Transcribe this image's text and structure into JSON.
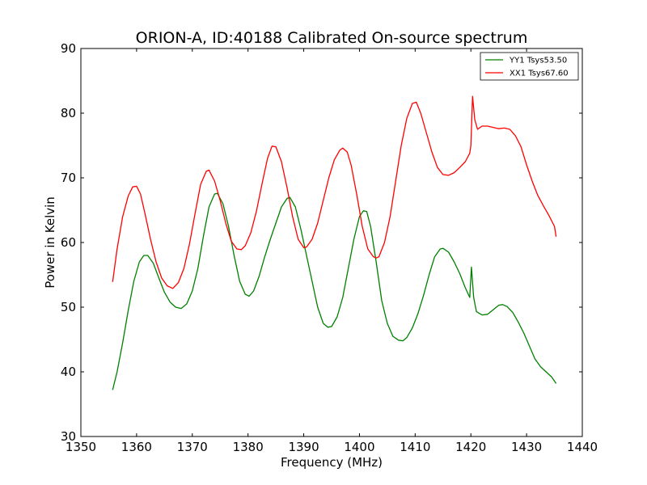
{
  "chart_data": {
    "type": "line",
    "title": "ORION-A, ID:40188 Calibrated On-source spectrum",
    "xlabel": "Frequency (MHz)",
    "ylabel": "Power in Kelvin",
    "xlim": [
      1350,
      1440
    ],
    "ylim": [
      30,
      90
    ],
    "xticks": [
      1350,
      1360,
      1370,
      1380,
      1390,
      1400,
      1410,
      1420,
      1430,
      1440
    ],
    "yticks": [
      30,
      40,
      50,
      60,
      70,
      80,
      90
    ],
    "grid": false,
    "legend_position": "top-right",
    "series": [
      {
        "name": "YY1 Tsys53.50",
        "color": "#008000",
        "points": [
          [
            1355.7,
            37.2
          ],
          [
            1356.5,
            40.0
          ],
          [
            1357.5,
            44.5
          ],
          [
            1358.5,
            49.5
          ],
          [
            1359.5,
            54.0
          ],
          [
            1360.5,
            57.0
          ],
          [
            1361.3,
            58.0
          ],
          [
            1362.0,
            58.0
          ],
          [
            1363.0,
            56.8
          ],
          [
            1364.0,
            54.5
          ],
          [
            1365.0,
            52.3
          ],
          [
            1366.0,
            50.8
          ],
          [
            1367.0,
            50.0
          ],
          [
            1368.0,
            49.8
          ],
          [
            1369.0,
            50.5
          ],
          [
            1370.0,
            52.5
          ],
          [
            1371.0,
            56.0
          ],
          [
            1372.0,
            61.0
          ],
          [
            1373.0,
            65.5
          ],
          [
            1374.0,
            67.5
          ],
          [
            1374.5,
            67.6
          ],
          [
            1375.5,
            66.0
          ],
          [
            1376.5,
            62.5
          ],
          [
            1377.5,
            58.0
          ],
          [
            1378.5,
            54.0
          ],
          [
            1379.5,
            52.0
          ],
          [
            1380.2,
            51.7
          ],
          [
            1381.0,
            52.5
          ],
          [
            1382.0,
            54.8
          ],
          [
            1383.0,
            57.8
          ],
          [
            1384.0,
            60.5
          ],
          [
            1385.0,
            63.0
          ],
          [
            1386.0,
            65.5
          ],
          [
            1387.0,
            66.8
          ],
          [
            1387.5,
            67.0
          ],
          [
            1388.5,
            65.5
          ],
          [
            1389.5,
            62.0
          ],
          [
            1390.5,
            58.0
          ],
          [
            1391.5,
            54.0
          ],
          [
            1392.5,
            50.0
          ],
          [
            1393.5,
            47.5
          ],
          [
            1394.3,
            46.9
          ],
          [
            1395.0,
            47.0
          ],
          [
            1396.0,
            48.5
          ],
          [
            1397.0,
            51.5
          ],
          [
            1398.0,
            56.0
          ],
          [
            1399.0,
            60.5
          ],
          [
            1400.0,
            64.0
          ],
          [
            1400.7,
            64.9
          ],
          [
            1401.3,
            64.8
          ],
          [
            1402.0,
            62.5
          ],
          [
            1403.0,
            57.0
          ],
          [
            1404.0,
            51.0
          ],
          [
            1405.0,
            47.5
          ],
          [
            1406.0,
            45.5
          ],
          [
            1407.0,
            44.9
          ],
          [
            1407.8,
            44.8
          ],
          [
            1408.5,
            45.3
          ],
          [
            1409.5,
            46.8
          ],
          [
            1410.5,
            49.0
          ],
          [
            1411.5,
            51.8
          ],
          [
            1412.5,
            55.0
          ],
          [
            1413.5,
            57.8
          ],
          [
            1414.5,
            59.0
          ],
          [
            1415.0,
            59.1
          ],
          [
            1416.0,
            58.5
          ],
          [
            1417.0,
            57.0
          ],
          [
            1418.0,
            55.2
          ],
          [
            1419.0,
            53.0
          ],
          [
            1419.8,
            51.5
          ],
          [
            1420.1,
            56.2
          ],
          [
            1420.5,
            51.5
          ],
          [
            1421.0,
            49.3
          ],
          [
            1422.0,
            48.8
          ],
          [
            1423.0,
            48.9
          ],
          [
            1424.0,
            49.6
          ],
          [
            1425.0,
            50.3
          ],
          [
            1425.7,
            50.4
          ],
          [
            1426.5,
            50.1
          ],
          [
            1427.5,
            49.2
          ],
          [
            1428.5,
            47.7
          ],
          [
            1429.5,
            46.0
          ],
          [
            1430.5,
            44.0
          ],
          [
            1431.5,
            42.0
          ],
          [
            1432.5,
            40.8
          ],
          [
            1433.5,
            40.0
          ],
          [
            1434.5,
            39.2
          ],
          [
            1435.3,
            38.2
          ]
        ]
      },
      {
        "name": "XX1 Tsys67.60",
        "color": "#ff0000",
        "points": [
          [
            1355.7,
            53.9
          ],
          [
            1356.5,
            59.0
          ],
          [
            1357.5,
            64.0
          ],
          [
            1358.5,
            67.2
          ],
          [
            1359.3,
            68.6
          ],
          [
            1360.0,
            68.7
          ],
          [
            1360.7,
            67.5
          ],
          [
            1361.5,
            64.5
          ],
          [
            1362.5,
            60.5
          ],
          [
            1363.5,
            57.0
          ],
          [
            1364.5,
            54.5
          ],
          [
            1365.5,
            53.3
          ],
          [
            1366.5,
            52.9
          ],
          [
            1367.5,
            53.8
          ],
          [
            1368.5,
            56.0
          ],
          [
            1369.5,
            59.8
          ],
          [
            1370.5,
            64.5
          ],
          [
            1371.5,
            69.0
          ],
          [
            1372.5,
            71.0
          ],
          [
            1373.0,
            71.2
          ],
          [
            1374.0,
            69.5
          ],
          [
            1375.0,
            66.5
          ],
          [
            1376.0,
            63.0
          ],
          [
            1377.0,
            60.2
          ],
          [
            1378.0,
            59.0
          ],
          [
            1378.8,
            58.9
          ],
          [
            1379.5,
            59.5
          ],
          [
            1380.5,
            61.5
          ],
          [
            1381.5,
            64.8
          ],
          [
            1382.5,
            69.0
          ],
          [
            1383.5,
            73.0
          ],
          [
            1384.3,
            74.9
          ],
          [
            1385.0,
            74.8
          ],
          [
            1386.0,
            72.5
          ],
          [
            1387.0,
            68.5
          ],
          [
            1388.0,
            64.0
          ],
          [
            1389.0,
            60.5
          ],
          [
            1390.0,
            59.2
          ],
          [
            1390.5,
            59.3
          ],
          [
            1391.5,
            60.5
          ],
          [
            1392.5,
            63.0
          ],
          [
            1393.5,
            66.5
          ],
          [
            1394.5,
            70.0
          ],
          [
            1395.5,
            72.8
          ],
          [
            1396.5,
            74.3
          ],
          [
            1397.0,
            74.6
          ],
          [
            1397.8,
            74.0
          ],
          [
            1398.5,
            72.0
          ],
          [
            1399.5,
            67.5
          ],
          [
            1400.5,
            62.5
          ],
          [
            1401.5,
            59.0
          ],
          [
            1402.5,
            57.8
          ],
          [
            1403.0,
            57.6
          ],
          [
            1403.5,
            57.8
          ],
          [
            1404.5,
            60.0
          ],
          [
            1405.5,
            64.0
          ],
          [
            1406.5,
            69.5
          ],
          [
            1407.5,
            75.0
          ],
          [
            1408.5,
            79.2
          ],
          [
            1409.5,
            81.5
          ],
          [
            1410.2,
            81.7
          ],
          [
            1411.0,
            80.0
          ],
          [
            1412.0,
            77.0
          ],
          [
            1413.0,
            74.0
          ],
          [
            1414.0,
            71.6
          ],
          [
            1415.0,
            70.5
          ],
          [
            1416.0,
            70.4
          ],
          [
            1417.0,
            70.8
          ],
          [
            1418.0,
            71.6
          ],
          [
            1419.0,
            72.5
          ],
          [
            1419.8,
            73.8
          ],
          [
            1420.0,
            75.0
          ],
          [
            1420.3,
            82.6
          ],
          [
            1420.7,
            79.0
          ],
          [
            1421.2,
            77.5
          ],
          [
            1422.0,
            78.0
          ],
          [
            1423.0,
            78.0
          ],
          [
            1424.0,
            77.8
          ],
          [
            1425.0,
            77.6
          ],
          [
            1426.0,
            77.7
          ],
          [
            1427.0,
            77.5
          ],
          [
            1428.0,
            76.5
          ],
          [
            1429.0,
            74.8
          ],
          [
            1430.0,
            72.0
          ],
          [
            1431.0,
            69.5
          ],
          [
            1432.0,
            67.3
          ],
          [
            1433.0,
            65.7
          ],
          [
            1434.0,
            64.2
          ],
          [
            1435.0,
            62.5
          ],
          [
            1435.3,
            60.9
          ]
        ]
      }
    ]
  }
}
